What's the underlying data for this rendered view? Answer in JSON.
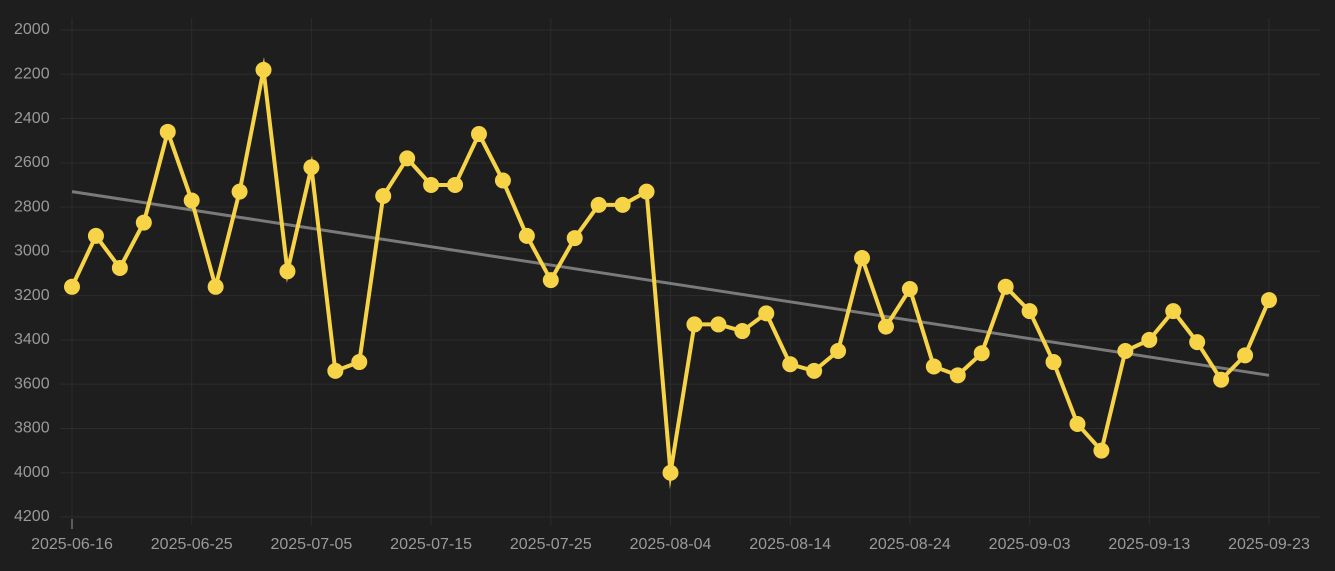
{
  "chart_data": {
    "type": "line",
    "categories": [
      "2025-06-16",
      null,
      null,
      null,
      null,
      "2025-06-25",
      null,
      null,
      null,
      null,
      "2025-07-05",
      null,
      null,
      null,
      null,
      "2025-07-15",
      null,
      null,
      null,
      null,
      "2025-07-25",
      null,
      null,
      null,
      null,
      "2025-08-04",
      null,
      null,
      null,
      null,
      "2025-08-14",
      null,
      null,
      null,
      null,
      "2025-08-24",
      null,
      null,
      null,
      null,
      "2025-09-03",
      null,
      null,
      null,
      null,
      "2025-09-13",
      null,
      null,
      null,
      null,
      "2025-09-23"
    ],
    "values": [
      3160,
      2930,
      3075,
      2870,
      2460,
      2770,
      3160,
      2730,
      2180,
      3090,
      2620,
      3540,
      3500,
      2750,
      2580,
      2700,
      2700,
      2470,
      2680,
      2930,
      3130,
      2940,
      2790,
      2790,
      2730,
      4000,
      3330,
      3330,
      3360,
      3280,
      3510,
      3540,
      3450,
      3030,
      3340,
      3170,
      3520,
      3560,
      3460,
      3160,
      3270,
      3500,
      3780,
      3900,
      3450,
      3400,
      3270,
      3410,
      3580,
      3470,
      3220
    ],
    "color": "#f7d447",
    "trendline": {
      "start": 2730,
      "end": 3560,
      "color": "#7a7a7a"
    },
    "ylim": [
      2000,
      4200
    ],
    "y_inverted": true,
    "yticks": [
      2000,
      2200,
      2400,
      2600,
      2800,
      3000,
      3200,
      3400,
      3600,
      3800,
      4000,
      4200
    ],
    "grid": true
  }
}
